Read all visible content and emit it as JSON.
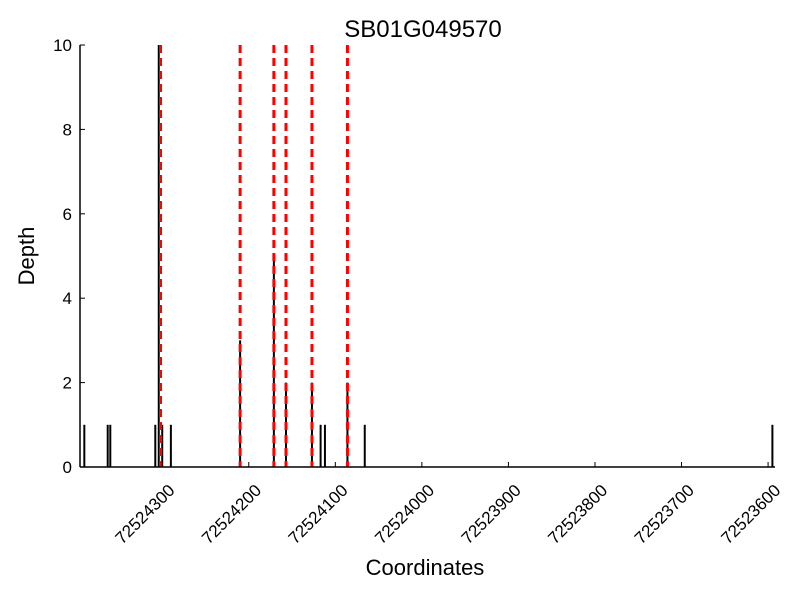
{
  "chart_data": {
    "type": "bar",
    "title": "SB01G049570",
    "xlabel": "Coordinates",
    "ylabel": "Depth",
    "xlim": [
      72524395,
      72523592
    ],
    "ylim": [
      0,
      10
    ],
    "x_inverted": true,
    "grid": false,
    "xticks": [
      72524300,
      72524200,
      72524100,
      72524000,
      72523900,
      72523800,
      72523700,
      72523600
    ],
    "xtick_labels": [
      "72524300",
      "72524200",
      "72524100",
      "72524000",
      "72523900",
      "72523800",
      "72523700",
      "72523600"
    ],
    "yticks": [
      0,
      2,
      4,
      6,
      8,
      10
    ],
    "ytick_labels": [
      "0",
      "2",
      "4",
      "6",
      "8",
      "10"
    ],
    "series": [
      {
        "type": "bar",
        "color": "#000000",
        "x": [
          72524390,
          72524363,
          72524360,
          72524308,
          72524304,
          72524300,
          72524290,
          72524210,
          72524171,
          72524157,
          72524127,
          72524117,
          72524112,
          72524086,
          72524066,
          72523595
        ],
        "values": [
          1,
          1,
          1,
          1,
          10,
          1,
          1,
          3,
          5,
          2,
          2,
          1,
          1,
          2,
          1,
          1
        ]
      },
      {
        "type": "vline",
        "color": "#ff0000",
        "style": "dashed",
        "x": [
          72524302,
          72524210,
          72524171,
          72524157,
          72524127,
          72524086
        ]
      }
    ]
  }
}
